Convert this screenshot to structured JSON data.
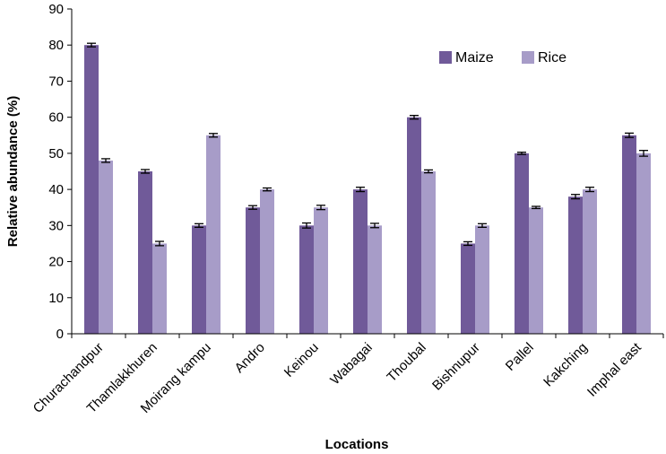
{
  "chart_data": {
    "type": "bar",
    "categories": [
      "Churachandpur",
      "Thamlakkhuren",
      "Moirang kampu",
      "Andro",
      "Keinou",
      "Wabagai",
      "Thoubal",
      "Bishnupur",
      "Pallel",
      "Kakching",
      "Imphal east"
    ],
    "series": [
      {
        "name": "Maize",
        "values": [
          80,
          45,
          30,
          35,
          30,
          40,
          60,
          25,
          50,
          38,
          55
        ],
        "errors": [
          0.5,
          0.5,
          0.5,
          0.5,
          0.7,
          0.6,
          0.5,
          0.5,
          0.3,
          0.6,
          0.6
        ],
        "color": "#705a99"
      },
      {
        "name": "Rice",
        "values": [
          48,
          25,
          55,
          40,
          35,
          30,
          45,
          30,
          35,
          40,
          50
        ],
        "errors": [
          0.5,
          0.6,
          0.5,
          0.4,
          0.6,
          0.6,
          0.4,
          0.5,
          0.3,
          0.6,
          0.8
        ],
        "color": "#a79cc8"
      }
    ],
    "xlabel": "Locations",
    "ylabel": "Relative abundance  (%)",
    "ylim": [
      0,
      90
    ],
    "yticks": [
      0,
      10,
      20,
      30,
      40,
      50,
      60,
      70,
      80,
      90
    ],
    "grid": false,
    "legend": "top-right"
  }
}
